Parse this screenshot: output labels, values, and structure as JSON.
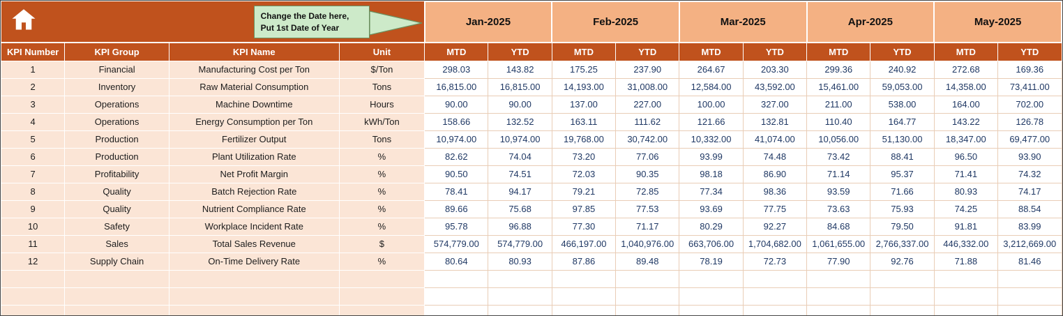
{
  "colors": {
    "header_dark_orange": "#C0521D",
    "month_salmon": "#F4B183",
    "row_label_peach": "#FBE5D6",
    "value_text_navy": "#1F3864",
    "callout_green": "#CDEAC9",
    "callout_border": "#6B8F5E",
    "grid_tan": "#E9CDB6"
  },
  "home_button": {
    "icon": "home"
  },
  "callout": {
    "line1": "Change the Date here,",
    "line2": "Put 1st Date of Year"
  },
  "months": [
    "Jan-2025",
    "Feb-2025",
    "Mar-2025",
    "Apr-2025",
    "May-2025"
  ],
  "subheaders": [
    "MTD",
    "YTD"
  ],
  "columns": [
    "KPI Number",
    "KPI Group",
    "KPI Name",
    "Unit"
  ],
  "rows": [
    {
      "number": "1",
      "group": "Financial",
      "name": "Manufacturing Cost per Ton",
      "unit": "$/Ton",
      "values": [
        "298.03",
        "143.82",
        "175.25",
        "237.90",
        "264.67",
        "203.30",
        "299.36",
        "240.92",
        "272.68",
        "169.36"
      ]
    },
    {
      "number": "2",
      "group": "Inventory",
      "name": "Raw Material Consumption",
      "unit": "Tons",
      "values": [
        "16,815.00",
        "16,815.00",
        "14,193.00",
        "31,008.00",
        "12,584.00",
        "43,592.00",
        "15,461.00",
        "59,053.00",
        "14,358.00",
        "73,411.00"
      ]
    },
    {
      "number": "3",
      "group": "Operations",
      "name": "Machine Downtime",
      "unit": "Hours",
      "values": [
        "90.00",
        "90.00",
        "137.00",
        "227.00",
        "100.00",
        "327.00",
        "211.00",
        "538.00",
        "164.00",
        "702.00"
      ]
    },
    {
      "number": "4",
      "group": "Operations",
      "name": "Energy Consumption per Ton",
      "unit": "kWh/Ton",
      "values": [
        "158.66",
        "132.52",
        "163.11",
        "111.62",
        "121.66",
        "132.81",
        "110.40",
        "164.77",
        "143.22",
        "126.78"
      ]
    },
    {
      "number": "5",
      "group": "Production",
      "name": "Fertilizer Output",
      "unit": "Tons",
      "values": [
        "10,974.00",
        "10,974.00",
        "19,768.00",
        "30,742.00",
        "10,332.00",
        "41,074.00",
        "10,056.00",
        "51,130.00",
        "18,347.00",
        "69,477.00"
      ]
    },
    {
      "number": "6",
      "group": "Production",
      "name": "Plant Utilization Rate",
      "unit": "%",
      "values": [
        "82.62",
        "74.04",
        "73.20",
        "77.06",
        "93.99",
        "74.48",
        "73.42",
        "88.41",
        "96.50",
        "93.90"
      ]
    },
    {
      "number": "7",
      "group": "Profitability",
      "name": "Net Profit Margin",
      "unit": "%",
      "values": [
        "90.50",
        "74.51",
        "72.03",
        "90.35",
        "98.18",
        "86.90",
        "71.14",
        "95.37",
        "71.41",
        "74.32"
      ]
    },
    {
      "number": "8",
      "group": "Quality",
      "name": "Batch Rejection Rate",
      "unit": "%",
      "values": [
        "78.41",
        "94.17",
        "79.21",
        "72.85",
        "77.34",
        "98.36",
        "93.59",
        "71.66",
        "80.93",
        "74.17"
      ]
    },
    {
      "number": "9",
      "group": "Quality",
      "name": "Nutrient Compliance Rate",
      "unit": "%",
      "values": [
        "89.66",
        "75.68",
        "97.85",
        "77.53",
        "93.69",
        "77.75",
        "73.63",
        "75.93",
        "74.25",
        "88.54"
      ]
    },
    {
      "number": "10",
      "group": "Safety",
      "name": "Workplace Incident Rate",
      "unit": "%",
      "values": [
        "95.78",
        "96.88",
        "77.30",
        "71.17",
        "80.29",
        "92.27",
        "84.68",
        "79.50",
        "91.81",
        "83.99"
      ]
    },
    {
      "number": "11",
      "group": "Sales",
      "name": "Total Sales Revenue",
      "unit": "$",
      "values": [
        "574,779.00",
        "574,779.00",
        "466,197.00",
        "1,040,976.00",
        "663,706.00",
        "1,704,682.00",
        "1,061,655.00",
        "2,766,337.00",
        "446,332.00",
        "3,212,669.00"
      ]
    },
    {
      "number": "12",
      "group": "Supply Chain",
      "name": "On-Time Delivery Rate",
      "unit": "%",
      "values": [
        "80.64",
        "80.93",
        "87.86",
        "89.48",
        "78.19",
        "72.73",
        "77.90",
        "92.76",
        "71.88",
        "81.46"
      ]
    }
  ],
  "empty_row_count": 3
}
